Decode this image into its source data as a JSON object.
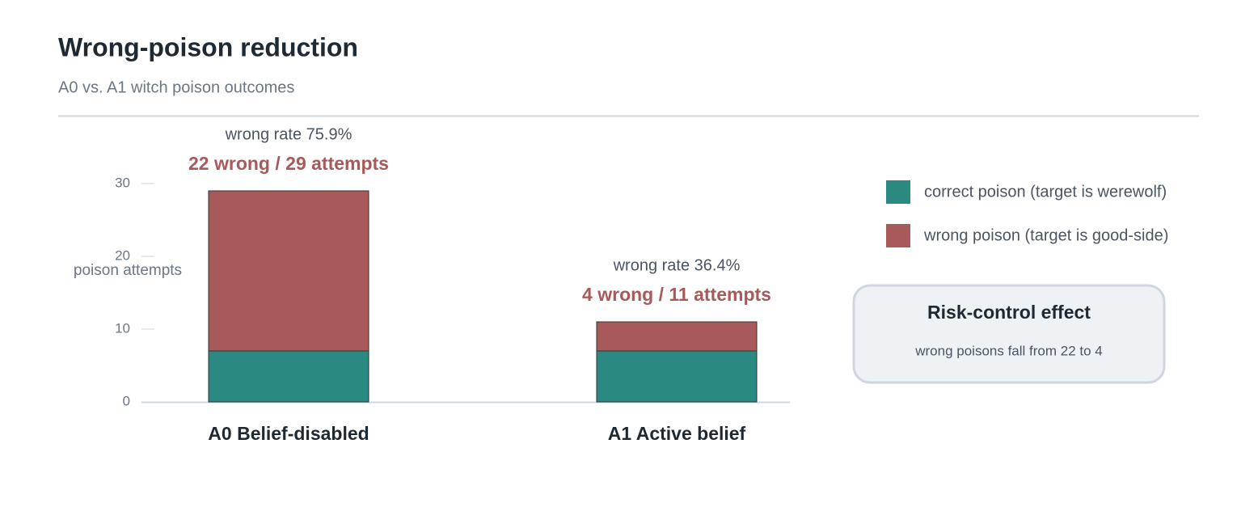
{
  "header": {
    "title": "Wrong-poison reduction",
    "subtitle": "A0 vs. A1 witch poison outcomes"
  },
  "chart_data": {
    "type": "bar",
    "stacked": true,
    "y_label": "poison attempts",
    "categories": [
      "A0 Belief-disabled",
      "A1 Active belief"
    ],
    "series": [
      {
        "name": "correct poison (target is werewolf)",
        "color": "#2a8a82",
        "values": [
          7,
          7
        ]
      },
      {
        "name": "wrong poison (target is good-side)",
        "color": "#a85959",
        "values": [
          22,
          4
        ]
      }
    ],
    "annotations": [
      {
        "rate": "wrong rate 75.9%",
        "count": "22 wrong / 29 attempts"
      },
      {
        "rate": "wrong rate 36.4%",
        "count": "4 wrong / 11 attempts"
      }
    ],
    "ylim": [
      0,
      32
    ],
    "yticks": [
      0,
      10,
      20,
      30
    ]
  },
  "callout": {
    "title": "Risk-control effect",
    "text": "wrong poisons fall from 22 to 4"
  }
}
